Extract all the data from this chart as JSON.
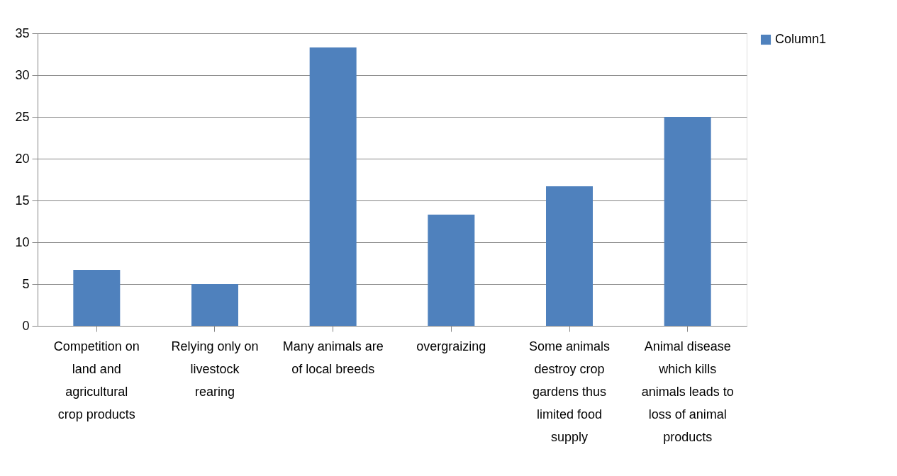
{
  "chart_data": {
    "type": "bar",
    "categories": [
      "Competition on land and agricultural crop products",
      "Relying only on livestock rearing",
      "Many animals are of local breeds",
      "overgraizing",
      "Some animals destroy crop gardens thus limited food supply",
      "Animal disease which kills animals leads to loss of animal products"
    ],
    "series": [
      {
        "name": "Column1",
        "color": "#4f81bd",
        "values": [
          6.7,
          5,
          33.3,
          13.3,
          16.7,
          25
        ]
      }
    ],
    "ylim": [
      0,
      35
    ],
    "yticks": [
      0,
      5,
      10,
      15,
      20,
      25,
      30,
      35
    ],
    "grid": "y",
    "legend": "right"
  }
}
